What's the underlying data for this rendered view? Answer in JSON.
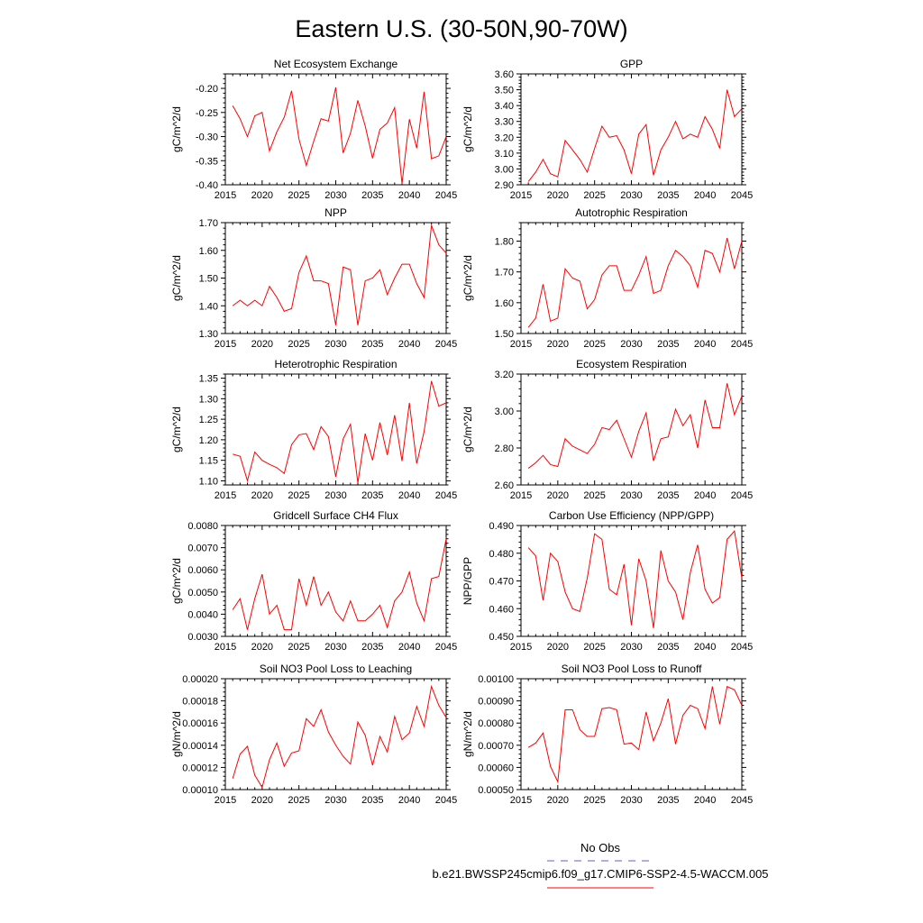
{
  "page": {
    "title": "Eastern U.S. (30-50N,90-70W)"
  },
  "colors": {
    "series_line": "#ff0000",
    "obs_line": "#6a5acd",
    "axis": "#000000"
  },
  "legend": {
    "items": [
      {
        "label": "No Obs",
        "color": "#6a5acd",
        "style": "dashed"
      },
      {
        "label": "b.e21.BWSSP245cmip6.f09_g17.CMIP6-SSP2-4.5-WACCM.005",
        "color": "#ff0000",
        "style": "solid"
      }
    ]
  },
  "chart_data": [
    {
      "type": "line",
      "title": "Net Ecosystem Exchange",
      "ylabel": "gC/m^2/d",
      "xlim": [
        2015,
        2045
      ],
      "ylim": [
        -0.4,
        -0.17
      ],
      "xticks": [
        2015,
        2020,
        2025,
        2030,
        2035,
        2040,
        2045
      ],
      "yticks": [
        -0.4,
        -0.35,
        -0.3,
        -0.25,
        -0.2
      ],
      "ytick_labels": [
        "-0.40",
        "-0.35",
        "-0.30",
        "-0.25",
        "-0.20"
      ],
      "x": [
        2016,
        2017,
        2018,
        2019,
        2020,
        2021,
        2022,
        2023,
        2024,
        2025,
        2026,
        2027,
        2028,
        2029,
        2030,
        2031,
        2032,
        2033,
        2034,
        2035,
        2036,
        2037,
        2038,
        2039,
        2040,
        2041,
        2042,
        2043,
        2044,
        2045
      ],
      "values": [
        -0.236,
        -0.263,
        -0.3,
        -0.257,
        -0.25,
        -0.33,
        -0.29,
        -0.26,
        -0.205,
        -0.305,
        -0.36,
        -0.31,
        -0.263,
        -0.268,
        -0.198,
        -0.334,
        -0.293,
        -0.225,
        -0.278,
        -0.345,
        -0.285,
        -0.272,
        -0.24,
        -0.398,
        -0.264,
        -0.324,
        -0.207,
        -0.346,
        -0.34,
        -0.3
      ]
    },
    {
      "type": "line",
      "title": "GPP",
      "ylabel": "gC/m^2/d",
      "xlim": [
        2015,
        2045
      ],
      "ylim": [
        2.9,
        3.6
      ],
      "xticks": [
        2015,
        2020,
        2025,
        2030,
        2035,
        2040,
        2045
      ],
      "yticks": [
        2.9,
        3.0,
        3.1,
        3.2,
        3.3,
        3.4,
        3.5,
        3.6
      ],
      "ytick_labels": [
        "2.90",
        "3.00",
        "3.10",
        "3.20",
        "3.30",
        "3.40",
        "3.50",
        "3.60"
      ],
      "x": [
        2016,
        2017,
        2018,
        2019,
        2020,
        2021,
        2022,
        2023,
        2024,
        2025,
        2026,
        2027,
        2028,
        2029,
        2030,
        2031,
        2032,
        2033,
        2034,
        2035,
        2036,
        2037,
        2038,
        2039,
        2040,
        2041,
        2042,
        2043,
        2044,
        2045
      ],
      "values": [
        2.92,
        2.98,
        3.06,
        2.97,
        2.95,
        3.18,
        3.12,
        3.06,
        2.98,
        3.13,
        3.27,
        3.2,
        3.21,
        3.12,
        2.97,
        3.22,
        3.28,
        2.96,
        3.12,
        3.2,
        3.3,
        3.19,
        3.22,
        3.2,
        3.33,
        3.25,
        3.13,
        3.5,
        3.33,
        3.38
      ]
    },
    {
      "type": "line",
      "title": "NPP",
      "ylabel": "gC/m^2/d",
      "xlim": [
        2015,
        2045
      ],
      "ylim": [
        1.3,
        1.7
      ],
      "xticks": [
        2015,
        2020,
        2025,
        2030,
        2035,
        2040,
        2045
      ],
      "yticks": [
        1.3,
        1.4,
        1.5,
        1.6,
        1.7
      ],
      "ytick_labels": [
        "1.30",
        "1.40",
        "1.50",
        "1.60",
        "1.70"
      ],
      "x": [
        2016,
        2017,
        2018,
        2019,
        2020,
        2021,
        2022,
        2023,
        2024,
        2025,
        2026,
        2027,
        2028,
        2029,
        2030,
        2031,
        2032,
        2033,
        2034,
        2035,
        2036,
        2037,
        2038,
        2039,
        2040,
        2041,
        2042,
        2043,
        2044,
        2045
      ],
      "values": [
        1.4,
        1.42,
        1.4,
        1.42,
        1.4,
        1.47,
        1.43,
        1.38,
        1.39,
        1.52,
        1.58,
        1.49,
        1.49,
        1.48,
        1.33,
        1.54,
        1.53,
        1.33,
        1.49,
        1.5,
        1.53,
        1.44,
        1.5,
        1.55,
        1.55,
        1.48,
        1.43,
        1.69,
        1.62,
        1.59
      ]
    },
    {
      "type": "line",
      "title": "Autotrophic Respiration",
      "ylabel": "gC/m^2/d",
      "xlim": [
        2015,
        2045
      ],
      "ylim": [
        1.5,
        1.86
      ],
      "xticks": [
        2015,
        2020,
        2025,
        2030,
        2035,
        2040,
        2045
      ],
      "yticks": [
        1.5,
        1.6,
        1.7,
        1.8
      ],
      "ytick_labels": [
        "1.50",
        "1.60",
        "1.70",
        "1.80"
      ],
      "x": [
        2016,
        2017,
        2018,
        2019,
        2020,
        2021,
        2022,
        2023,
        2024,
        2025,
        2026,
        2027,
        2028,
        2029,
        2030,
        2031,
        2032,
        2033,
        2034,
        2035,
        2036,
        2037,
        2038,
        2039,
        2040,
        2041,
        2042,
        2043,
        2044,
        2045
      ],
      "values": [
        1.52,
        1.55,
        1.66,
        1.54,
        1.55,
        1.71,
        1.68,
        1.67,
        1.58,
        1.61,
        1.69,
        1.72,
        1.72,
        1.64,
        1.64,
        1.69,
        1.75,
        1.63,
        1.64,
        1.72,
        1.77,
        1.75,
        1.72,
        1.65,
        1.77,
        1.76,
        1.7,
        1.81,
        1.71,
        1.8
      ]
    },
    {
      "type": "line",
      "title": "Heterotrophic Respiration",
      "ylabel": "gC/m^2/d",
      "xlim": [
        2015,
        2045
      ],
      "ylim": [
        1.09,
        1.36
      ],
      "xticks": [
        2015,
        2020,
        2025,
        2030,
        2035,
        2040,
        2045
      ],
      "yticks": [
        1.1,
        1.15,
        1.2,
        1.25,
        1.3,
        1.35
      ],
      "ytick_labels": [
        "1.10",
        "1.15",
        "1.20",
        "1.25",
        "1.30",
        "1.35"
      ],
      "x": [
        2016,
        2017,
        2018,
        2019,
        2020,
        2021,
        2022,
        2023,
        2024,
        2025,
        2026,
        2027,
        2028,
        2029,
        2030,
        2031,
        2032,
        2033,
        2034,
        2035,
        2036,
        2037,
        2038,
        2039,
        2040,
        2041,
        2042,
        2043,
        2044,
        2045
      ],
      "values": [
        1.165,
        1.16,
        1.1,
        1.17,
        1.15,
        1.14,
        1.132,
        1.118,
        1.188,
        1.212,
        1.215,
        1.176,
        1.232,
        1.208,
        1.11,
        1.202,
        1.238,
        1.095,
        1.215,
        1.15,
        1.242,
        1.163,
        1.26,
        1.148,
        1.29,
        1.142,
        1.22,
        1.343,
        1.282,
        1.29
      ]
    },
    {
      "type": "line",
      "title": "Ecosystem Respiration",
      "ylabel": "gC/m^2/d",
      "xlim": [
        2015,
        2045
      ],
      "ylim": [
        2.6,
        3.2
      ],
      "xticks": [
        2015,
        2020,
        2025,
        2030,
        2035,
        2040,
        2045
      ],
      "yticks": [
        2.6,
        2.8,
        3.0,
        3.2
      ],
      "ytick_labels": [
        "2.60",
        "2.80",
        "3.00",
        "3.20"
      ],
      "x": [
        2016,
        2017,
        2018,
        2019,
        2020,
        2021,
        2022,
        2023,
        2024,
        2025,
        2026,
        2027,
        2028,
        2029,
        2030,
        2031,
        2032,
        2033,
        2034,
        2035,
        2036,
        2037,
        2038,
        2039,
        2040,
        2041,
        2042,
        2043,
        2044,
        2045
      ],
      "values": [
        2.69,
        2.72,
        2.76,
        2.71,
        2.7,
        2.85,
        2.81,
        2.79,
        2.77,
        2.82,
        2.91,
        2.9,
        2.95,
        2.85,
        2.75,
        2.89,
        2.99,
        2.73,
        2.85,
        2.86,
        3.01,
        2.92,
        2.98,
        2.8,
        3.06,
        2.91,
        2.91,
        3.15,
        2.98,
        3.08
      ]
    },
    {
      "type": "line",
      "title": "Gridcell Surface CH4 Flux",
      "ylabel": "gC/m^2/d",
      "xlim": [
        2015,
        2045
      ],
      "ylim": [
        0.003,
        0.008
      ],
      "xticks": [
        2015,
        2020,
        2025,
        2030,
        2035,
        2040,
        2045
      ],
      "yticks": [
        0.003,
        0.004,
        0.005,
        0.006,
        0.007,
        0.008
      ],
      "ytick_labels": [
        "0.0030",
        "0.0040",
        "0.0050",
        "0.0060",
        "0.0070",
        "0.0080"
      ],
      "x": [
        2016,
        2017,
        2018,
        2019,
        2020,
        2021,
        2022,
        2023,
        2024,
        2025,
        2026,
        2027,
        2028,
        2029,
        2030,
        2031,
        2032,
        2033,
        2034,
        2035,
        2036,
        2037,
        2038,
        2039,
        2040,
        2041,
        2042,
        2043,
        2044,
        2045
      ],
      "values": [
        0.0042,
        0.0047,
        0.0033,
        0.0047,
        0.0058,
        0.004,
        0.0044,
        0.0033,
        0.0033,
        0.0056,
        0.0044,
        0.0057,
        0.0044,
        0.005,
        0.0041,
        0.0037,
        0.0046,
        0.0037,
        0.0037,
        0.004,
        0.0044,
        0.0034,
        0.0046,
        0.005,
        0.0059,
        0.0045,
        0.0037,
        0.0056,
        0.0057,
        0.0074
      ]
    },
    {
      "type": "line",
      "title": "Carbon Use Efficiency (NPP/GPP)",
      "ylabel": "NPP/GPP",
      "xlim": [
        2015,
        2045
      ],
      "ylim": [
        0.45,
        0.49
      ],
      "xticks": [
        2015,
        2020,
        2025,
        2030,
        2035,
        2040,
        2045
      ],
      "yticks": [
        0.45,
        0.46,
        0.47,
        0.48,
        0.49
      ],
      "ytick_labels": [
        "0.450",
        "0.460",
        "0.470",
        "0.480",
        "0.490"
      ],
      "x": [
        2016,
        2017,
        2018,
        2019,
        2020,
        2021,
        2022,
        2023,
        2024,
        2025,
        2026,
        2027,
        2028,
        2029,
        2030,
        2031,
        2032,
        2033,
        2034,
        2035,
        2036,
        2037,
        2038,
        2039,
        2040,
        2041,
        2042,
        2043,
        2044,
        2045
      ],
      "values": [
        0.482,
        0.479,
        0.463,
        0.48,
        0.477,
        0.466,
        0.46,
        0.459,
        0.471,
        0.487,
        0.485,
        0.467,
        0.465,
        0.476,
        0.454,
        0.478,
        0.47,
        0.453,
        0.481,
        0.47,
        0.466,
        0.456,
        0.473,
        0.483,
        0.467,
        0.462,
        0.464,
        0.485,
        0.488,
        0.471
      ]
    },
    {
      "type": "line",
      "title": "Soil NO3 Pool Loss to Leaching",
      "ylabel": "gN/m^2/d",
      "xlim": [
        2015,
        2045
      ],
      "ylim": [
        0.0001,
        0.0002
      ],
      "xticks": [
        2015,
        2020,
        2025,
        2030,
        2035,
        2040,
        2045
      ],
      "yticks": [
        0.0001,
        0.00012,
        0.00014,
        0.00016,
        0.00018,
        0.0002
      ],
      "ytick_labels": [
        "0.00010",
        "0.00012",
        "0.00014",
        "0.00016",
        "0.00018",
        "0.00020"
      ],
      "x": [
        2016,
        2017,
        2018,
        2019,
        2020,
        2021,
        2022,
        2023,
        2024,
        2025,
        2026,
        2027,
        2028,
        2029,
        2030,
        2031,
        2032,
        2033,
        2034,
        2035,
        2036,
        2037,
        2038,
        2039,
        2040,
        2041,
        2042,
        2043,
        2044,
        2045
      ],
      "values": [
        0.00011,
        0.000132,
        0.000139,
        0.000113,
        0.000102,
        0.000127,
        0.000142,
        0.000121,
        0.000133,
        0.000135,
        0.000164,
        0.000157,
        0.000172,
        0.000152,
        0.00014,
        0.00013,
        0.000123,
        0.000161,
        0.000149,
        0.000122,
        0.000148,
        0.000134,
        0.000166,
        0.000145,
        0.000151,
        0.000175,
        0.000157,
        0.000193,
        0.000176,
        0.000165
      ]
    },
    {
      "type": "line",
      "title": "Soil NO3 Pool Loss to Runoff",
      "ylabel": "gN/m^2/d",
      "xlim": [
        2015,
        2045
      ],
      "ylim": [
        0.0005,
        0.001
      ],
      "xticks": [
        2015,
        2020,
        2025,
        2030,
        2035,
        2040,
        2045
      ],
      "yticks": [
        0.0005,
        0.0006,
        0.0007,
        0.0008,
        0.0009,
        0.001
      ],
      "ytick_labels": [
        "0.00050",
        "0.00060",
        "0.00070",
        "0.00080",
        "0.00090",
        "0.00100"
      ],
      "x": [
        2016,
        2017,
        2018,
        2019,
        2020,
        2021,
        2022,
        2023,
        2024,
        2025,
        2026,
        2027,
        2028,
        2029,
        2030,
        2031,
        2032,
        2033,
        2034,
        2035,
        2036,
        2037,
        2038,
        2039,
        2040,
        2041,
        2042,
        2043,
        2044,
        2045
      ],
      "values": [
        0.00069,
        0.00071,
        0.000755,
        0.000605,
        0.000535,
        0.00086,
        0.00086,
        0.00077,
        0.00074,
        0.00074,
        0.000865,
        0.00087,
        0.00086,
        0.000705,
        0.00071,
        0.00068,
        0.00085,
        0.00072,
        0.0008,
        0.00091,
        0.000705,
        0.000835,
        0.00088,
        0.000865,
        0.000775,
        0.000965,
        0.000795,
        0.000965,
        0.00095,
        0.00088
      ]
    }
  ]
}
